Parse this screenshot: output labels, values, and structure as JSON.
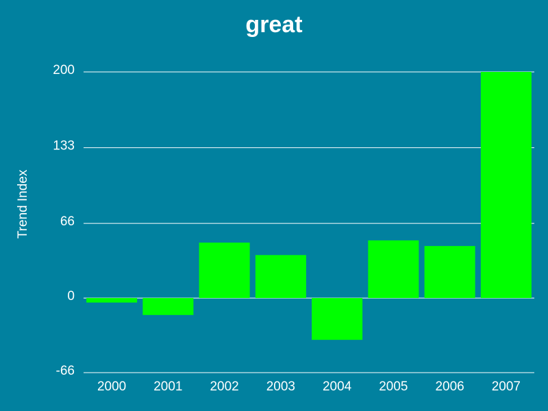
{
  "chart_data": {
    "type": "bar",
    "title": "great",
    "xlabel": "",
    "ylabel": "Trend Index",
    "categories": [
      "2000",
      "2001",
      "2002",
      "2003",
      "2004",
      "2005",
      "2006",
      "2007"
    ],
    "values": [
      -4,
      -15,
      49,
      38,
      -37,
      51,
      46,
      200
    ],
    "yticks": [
      "-66",
      "0",
      "66",
      "133",
      "200"
    ],
    "ylim": [
      -66,
      200
    ],
    "grid": true,
    "colors": {
      "background": "#01819f",
      "bar": "#00ff00",
      "grid": "#ffffff",
      "text": "#ffffff"
    }
  }
}
